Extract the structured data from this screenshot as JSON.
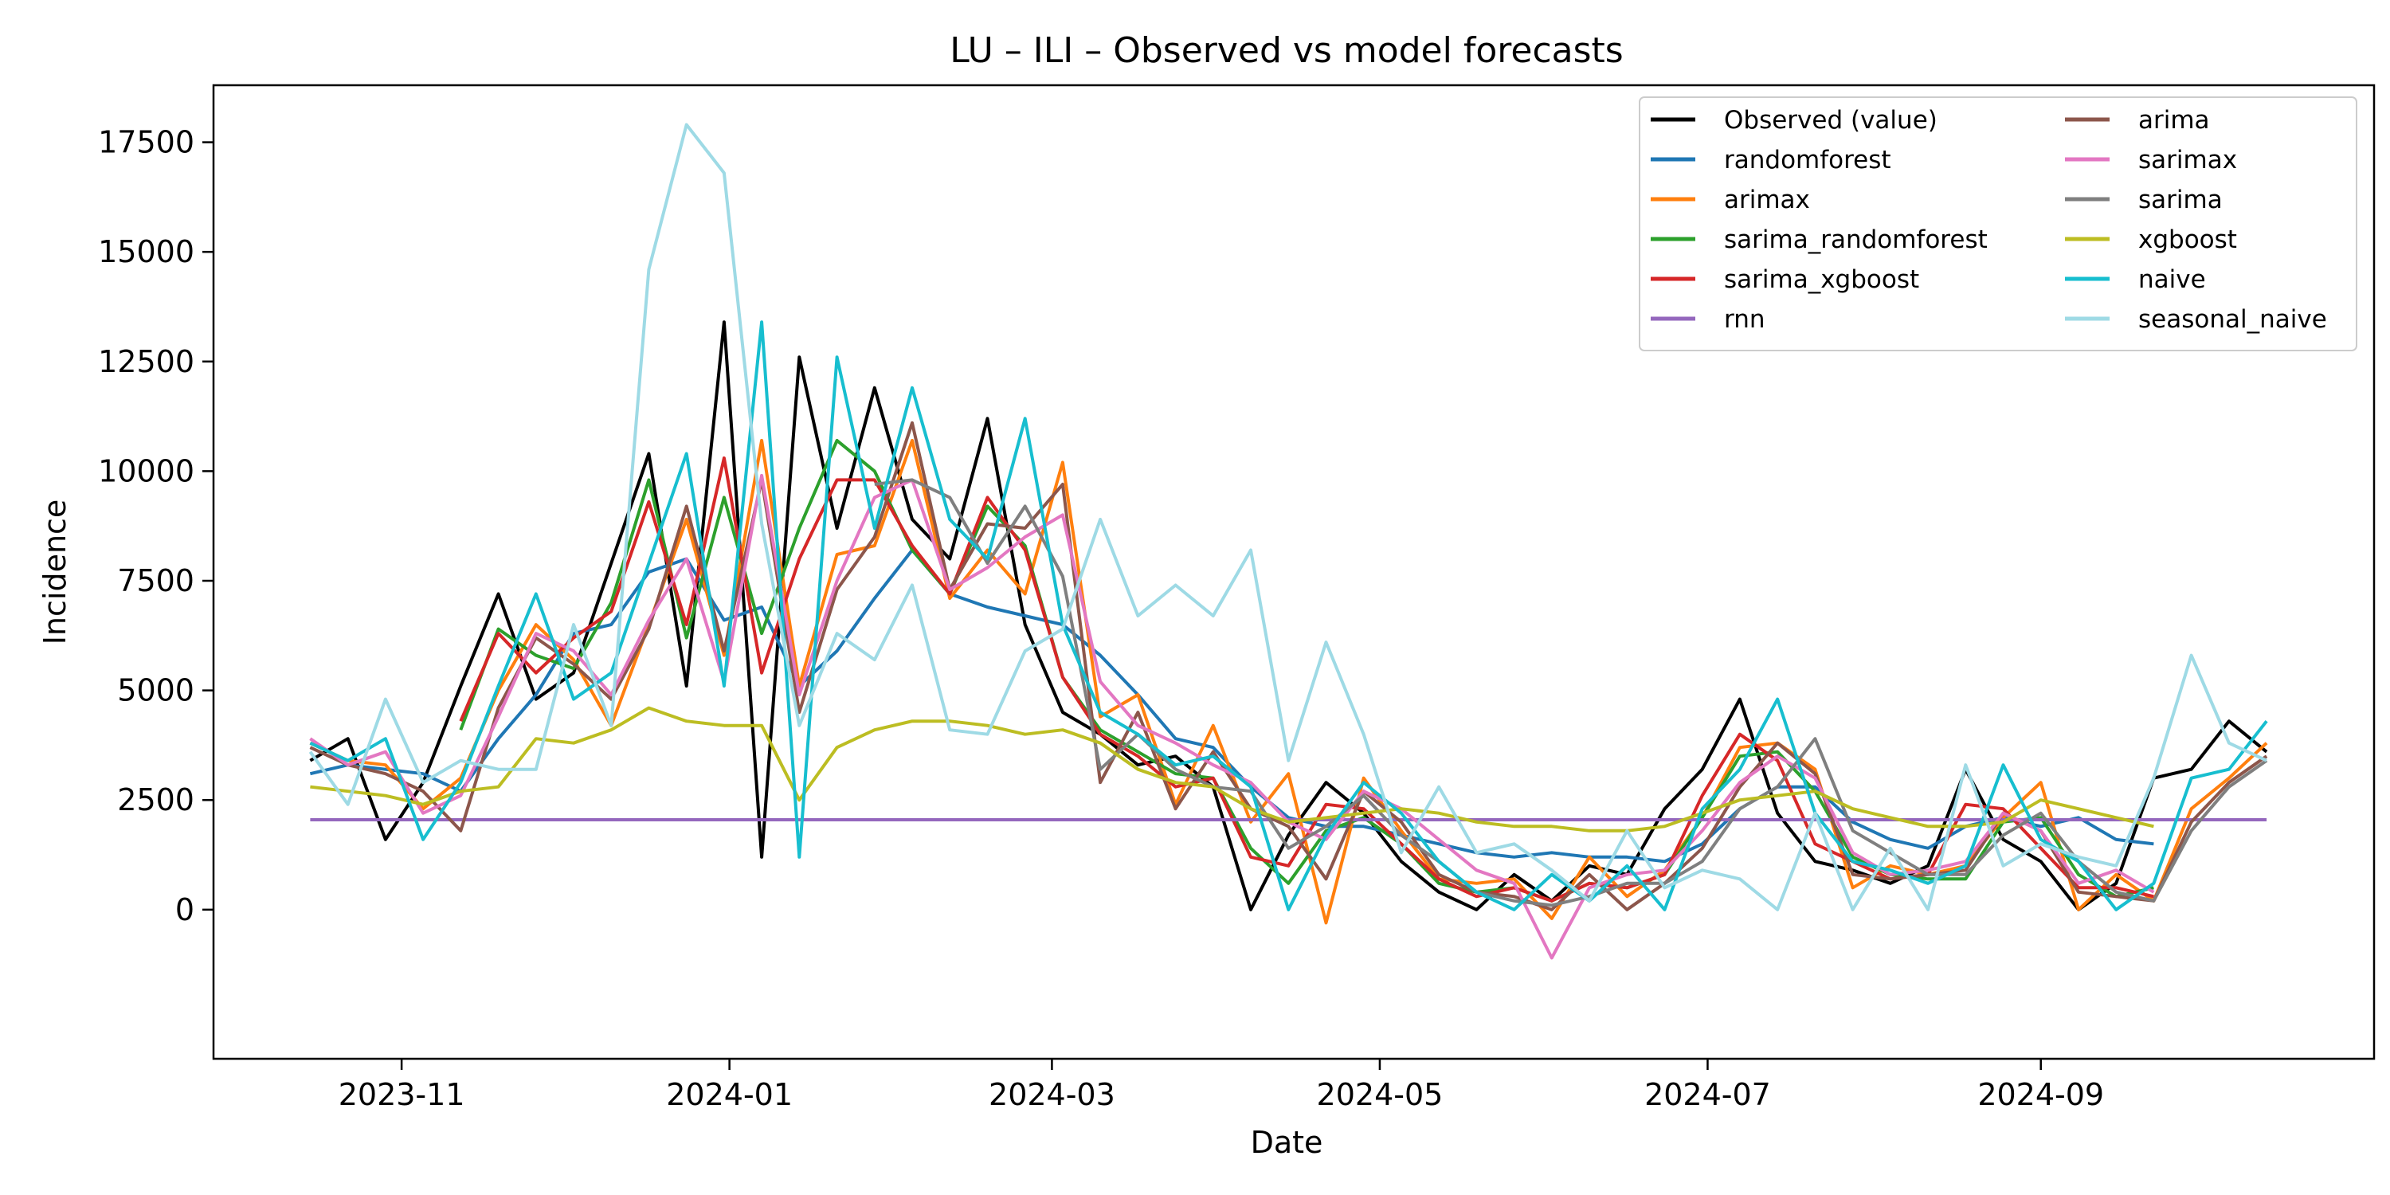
{
  "chart_data": {
    "type": "line",
    "title": "LU – ILI – Observed vs model forecasts",
    "xlabel": "Date",
    "ylabel": "Incidence",
    "xlim": [
      "2023-09-27",
      "2024-11-02"
    ],
    "ylim": [
      -3400,
      18800
    ],
    "grid": false,
    "legend_position": "top-right",
    "x_ticks": [
      "2023-11",
      "2024-01",
      "2024-03",
      "2024-05",
      "2024-07",
      "2024-09"
    ],
    "x_tick_dates": [
      "2023-11-01",
      "2024-01-01",
      "2024-03-01",
      "2024-05-01",
      "2024-07-01",
      "2024-09-01"
    ],
    "y_ticks": [
      0,
      2500,
      5000,
      7500,
      10000,
      12500,
      15000,
      17500
    ],
    "x": [
      "2023-10-15",
      "2023-10-22",
      "2023-10-29",
      "2023-11-05",
      "2023-11-12",
      "2023-11-19",
      "2023-11-26",
      "2023-12-03",
      "2023-12-10",
      "2023-12-17",
      "2023-12-24",
      "2023-12-31",
      "2024-01-07",
      "2024-01-14",
      "2024-01-21",
      "2024-01-28",
      "2024-02-04",
      "2024-02-11",
      "2024-02-18",
      "2024-02-25",
      "2024-03-03",
      "2024-03-10",
      "2024-03-17",
      "2024-03-24",
      "2024-03-31",
      "2024-04-07",
      "2024-04-14",
      "2024-04-21",
      "2024-04-28",
      "2024-05-05",
      "2024-05-12",
      "2024-05-19",
      "2024-05-26",
      "2024-06-02",
      "2024-06-09",
      "2024-06-16",
      "2024-06-23",
      "2024-06-30",
      "2024-07-07",
      "2024-07-14",
      "2024-07-21",
      "2024-07-28",
      "2024-08-04",
      "2024-08-11",
      "2024-08-18",
      "2024-08-25",
      "2024-09-01",
      "2024-09-08",
      "2024-09-15",
      "2024-09-22",
      "2024-09-29",
      "2024-10-06",
      "2024-10-13"
    ],
    "series": [
      {
        "name": "Observed (value)",
        "color": "#000000",
        "values": [
          3400,
          3900,
          1600,
          2900,
          5100,
          7200,
          4800,
          5400,
          7900,
          10400,
          5100,
          13400,
          1200,
          12600,
          8700,
          11900,
          8900,
          8000,
          11200,
          6500,
          4500,
          4000,
          3300,
          3500,
          2800,
          0,
          1700,
          2900,
          2200,
          1100,
          400,
          0,
          800,
          200,
          1000,
          800,
          2300,
          3200,
          4800,
          2200,
          1100,
          900,
          600,
          1000,
          3200,
          1600,
          1100,
          0,
          600,
          3000,
          3200,
          4300,
          3600
        ]
      },
      {
        "name": "randomforest",
        "color": "#1f77b4",
        "values": [
          3100,
          3300,
          3200,
          3100,
          2700,
          3900,
          4900,
          6300,
          6500,
          7700,
          8000,
          6600,
          6900,
          5100,
          5900,
          7100,
          8200,
          7200,
          6900,
          6700,
          6500,
          5800,
          4900,
          3900,
          3700,
          2800,
          2100,
          1900,
          1900,
          1700,
          1500,
          1300,
          1200,
          1300,
          1200,
          1200,
          1100,
          1500,
          2300,
          2800,
          2800,
          2000,
          1600,
          1400,
          1900,
          2100,
          1900,
          2100,
          1600,
          1500,
          null,
          null,
          null
        ]
      },
      {
        "name": "arimax",
        "color": "#ff7f0e",
        "values": [
          3800,
          3400,
          3300,
          2300,
          3000,
          5000,
          6500,
          5700,
          4200,
          6500,
          8900,
          5800,
          10700,
          5100,
          8100,
          8300,
          10700,
          7100,
          8200,
          7200,
          10200,
          4400,
          4900,
          2400,
          4200,
          2000,
          3100,
          -300,
          3000,
          1800,
          700,
          600,
          700,
          -200,
          1200,
          300,
          900,
          2100,
          3700,
          3800,
          3200,
          500,
          1000,
          800,
          1000,
          2100,
          2900,
          0,
          800,
          200,
          2300,
          3000,
          3800
        ]
      },
      {
        "name": "sarima_randomforest",
        "color": "#2ca02c",
        "values": [
          null,
          null,
          null,
          null,
          4100,
          6400,
          5800,
          5500,
          7000,
          9800,
          6200,
          9400,
          6300,
          8700,
          10700,
          10000,
          8200,
          7200,
          9200,
          8300,
          5300,
          4100,
          3600,
          3100,
          3000,
          1400,
          600,
          1800,
          2100,
          1500,
          600,
          400,
          500,
          200,
          600,
          500,
          800,
          2100,
          3500,
          3600,
          2700,
          1200,
          800,
          700,
          700,
          2000,
          2100,
          800,
          300,
          500,
          null,
          null,
          null
        ]
      },
      {
        "name": "sarima_xgboost",
        "color": "#d62728",
        "values": [
          null,
          null,
          null,
          null,
          4300,
          6300,
          5400,
          6200,
          6800,
          9300,
          6500,
          10300,
          5400,
          8000,
          9800,
          9800,
          8300,
          7200,
          9400,
          8200,
          5300,
          4000,
          3500,
          2800,
          3000,
          1200,
          1000,
          2400,
          2300,
          1500,
          700,
          300,
          500,
          200,
          600,
          500,
          800,
          2600,
          4000,
          3400,
          1500,
          1100,
          700,
          800,
          2400,
          2300,
          1400,
          500,
          500,
          300,
          null,
          null,
          null
        ]
      },
      {
        "name": "rnn",
        "color": "#9467bd",
        "values": [
          2050,
          2050,
          2050,
          2050,
          2050,
          2050,
          2050,
          2050,
          2050,
          2050,
          2050,
          2050,
          2050,
          2050,
          2050,
          2050,
          2050,
          2050,
          2050,
          2050,
          2050,
          2050,
          2050,
          2050,
          2050,
          2050,
          2050,
          2050,
          2050,
          2050,
          2050,
          2050,
          2050,
          2050,
          2050,
          2050,
          2050,
          2050,
          2050,
          2050,
          2050,
          2050,
          2050,
          2050,
          2050,
          2050,
          2050,
          2050,
          2050,
          2050,
          2050,
          2050,
          2050
        ]
      },
      {
        "name": "arima",
        "color": "#8c564b",
        "values": [
          3700,
          3300,
          3100,
          2700,
          1800,
          4600,
          6200,
          5600,
          4800,
          6400,
          9200,
          5900,
          9800,
          4500,
          7300,
          8500,
          11100,
          7300,
          8800,
          8700,
          9700,
          2900,
          4500,
          2300,
          3600,
          2300,
          1900,
          700,
          2700,
          2000,
          800,
          400,
          300,
          0,
          800,
          0,
          600,
          1400,
          2800,
          3800,
          3100,
          800,
          700,
          800,
          900,
          2200,
          1800,
          400,
          300,
          200,
          2000,
          2900,
          3500
        ]
      },
      {
        "name": "sarimax",
        "color": "#e377c2",
        "values": [
          3900,
          3300,
          3600,
          2200,
          2600,
          4400,
          6300,
          5900,
          4900,
          6600,
          8000,
          5200,
          9900,
          4900,
          7500,
          9400,
          9800,
          7300,
          7800,
          8500,
          9000,
          5200,
          4200,
          3800,
          3300,
          2900,
          2000,
          1600,
          2700,
          2300,
          1600,
          900,
          600,
          -1100,
          500,
          800,
          900,
          1800,
          2900,
          3500,
          3000,
          1300,
          800,
          900,
          1100,
          2200,
          1800,
          600,
          900,
          400,
          null,
          null,
          null
        ]
      },
      {
        "name": "sarima",
        "color": "#7f7f7f",
        "values": [
          null,
          null,
          null,
          null,
          null,
          null,
          null,
          null,
          null,
          null,
          null,
          null,
          null,
          null,
          null,
          9700,
          9800,
          9400,
          7900,
          9200,
          7600,
          3200,
          4000,
          3200,
          2800,
          2700,
          1400,
          1900,
          2600,
          1700,
          1100,
          400,
          200,
          100,
          300,
          600,
          600,
          1100,
          2300,
          2800,
          3900,
          1800,
          1300,
          800,
          800,
          1700,
          2200,
          1100,
          400,
          200,
          1800,
          2800,
          3400
        ]
      },
      {
        "name": "xgboost",
        "color": "#bcbd22",
        "values": [
          2800,
          2700,
          2600,
          2400,
          2700,
          2800,
          3900,
          3800,
          4100,
          4600,
          4300,
          4200,
          4200,
          2500,
          3700,
          4100,
          4300,
          4300,
          4200,
          4000,
          4100,
          3800,
          3200,
          2900,
          2800,
          2300,
          2000,
          2100,
          2200,
          2300,
          2200,
          2000,
          1900,
          1900,
          1800,
          1800,
          1900,
          2200,
          2500,
          2600,
          2700,
          2300,
          2100,
          1900,
          1900,
          2000,
          2500,
          2300,
          2100,
          1900,
          null,
          null,
          null
        ]
      },
      {
        "name": "naive",
        "color": "#17becf",
        "values": [
          3800,
          3400,
          3900,
          1600,
          2900,
          5100,
          7200,
          4800,
          5400,
          7900,
          10400,
          5100,
          13400,
          1200,
          12600,
          8700,
          11900,
          8900,
          8000,
          11200,
          6500,
          4500,
          4000,
          3300,
          3500,
          2800,
          0,
          1700,
          2900,
          2200,
          1100,
          400,
          0,
          800,
          200,
          1000,
          0,
          2300,
          3200,
          4800,
          2200,
          1100,
          900,
          600,
          1000,
          3300,
          1600,
          1100,
          0,
          600,
          3000,
          3200,
          4300
        ]
      },
      {
        "name": "seasonal_naive",
        "color": "#9edae5",
        "values": [
          3600,
          2400,
          4800,
          2900,
          3400,
          3200,
          3200,
          6500,
          4200,
          14600,
          17900,
          16800,
          8800,
          4200,
          6300,
          5700,
          7400,
          4100,
          4000,
          5900,
          6400,
          8900,
          6700,
          7400,
          6700,
          8200,
          3400,
          6100,
          4000,
          1300,
          2800,
          1300,
          1500,
          900,
          200,
          1800,
          500,
          900,
          700,
          0,
          2200,
          0,
          1400,
          0,
          3300,
          1000,
          1500,
          1200,
          1000,
          3000,
          5800,
          3800,
          3400
        ]
      }
    ]
  }
}
